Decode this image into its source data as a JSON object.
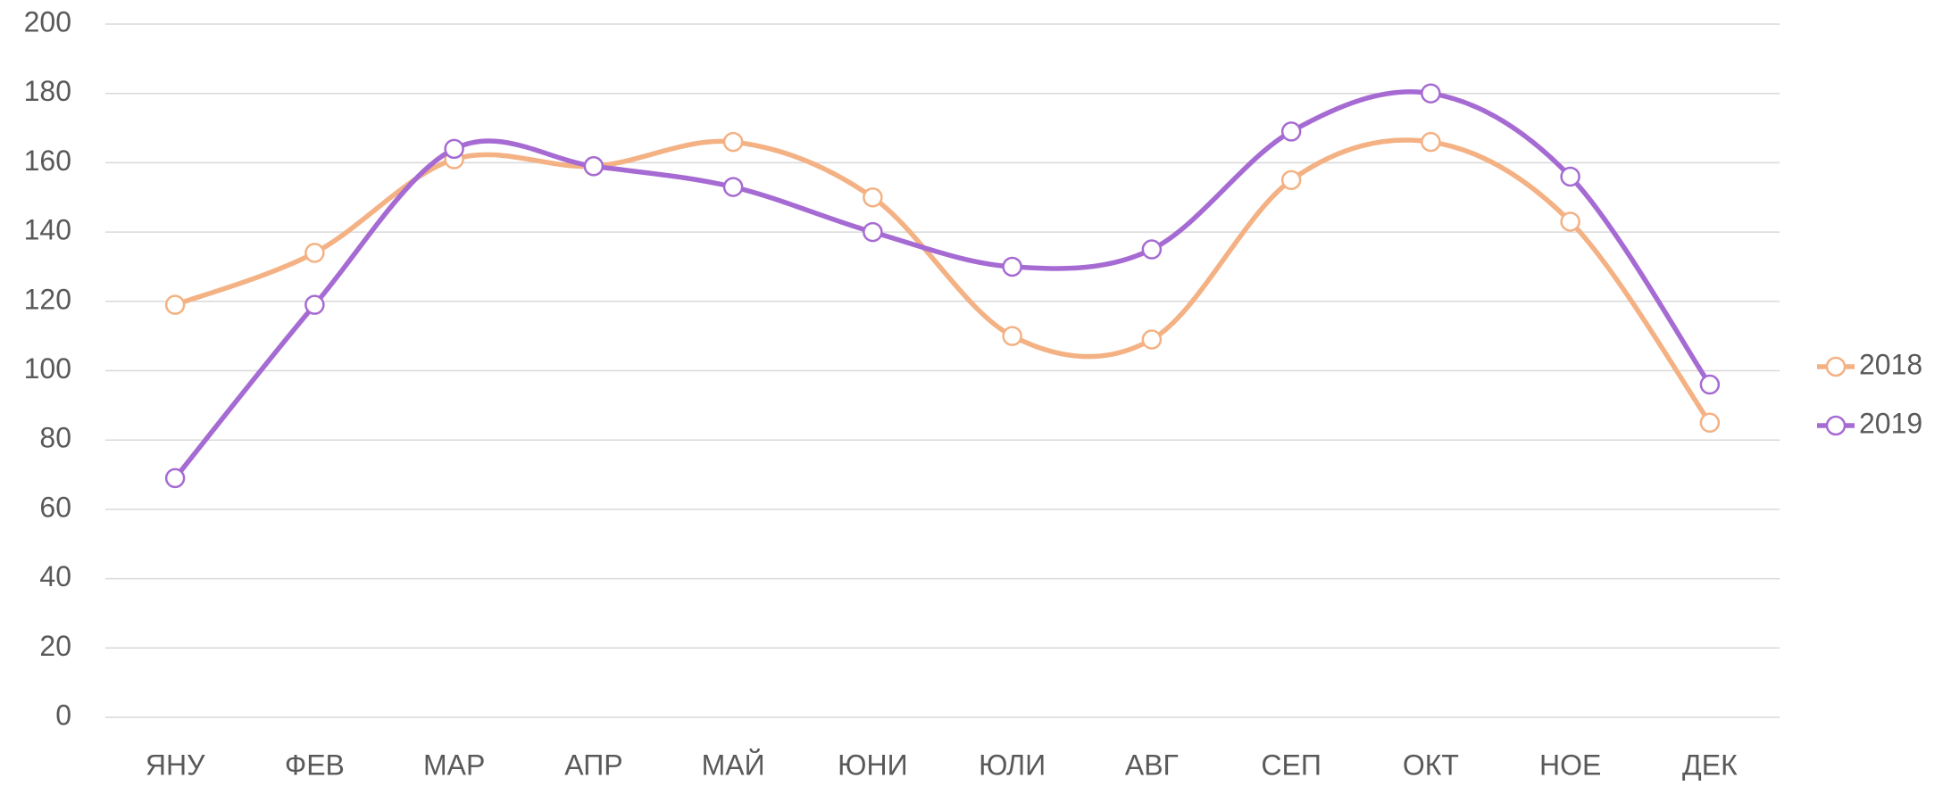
{
  "chart_data": {
    "type": "line",
    "smooth": true,
    "legend": "right",
    "grid": true,
    "categories": [
      "ЯНУ",
      "ФЕВ",
      "МАР",
      "АПР",
      "МАЙ",
      "ЮНИ",
      "ЮЛИ",
      "АВГ",
      "СЕП",
      "ОКТ",
      "НОЕ",
      "ДЕК"
    ],
    "series": [
      {
        "name": "2018",
        "color": "#f4b183",
        "values": [
          119,
          134,
          161,
          159,
          166,
          150,
          110,
          109,
          155,
          166,
          143,
          85
        ]
      },
      {
        "name": "2019",
        "color": "#a66bd3",
        "values": [
          69,
          119,
          164,
          159,
          153,
          140,
          130,
          135,
          169,
          180,
          156,
          96
        ]
      }
    ],
    "ylim": [
      0,
      200
    ],
    "yticks": [
      0,
      20,
      40,
      60,
      80,
      100,
      120,
      140,
      160,
      180,
      200
    ]
  }
}
